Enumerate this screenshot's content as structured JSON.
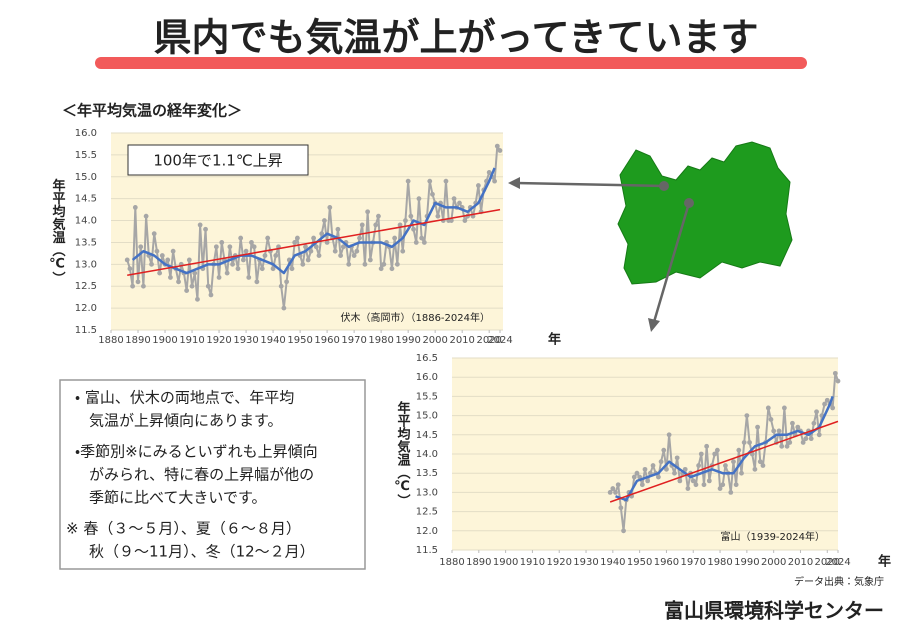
{
  "header": {
    "title": "県内でも気温が上がってきています",
    "subtitle": "＜年平均気温の経年変化＞"
  },
  "chart_data": [
    {
      "type": "line",
      "trend_note": "100年で1.1℃上昇",
      "station_label": "伏木（高岡市）（1886-2024年）",
      "ylabel": "年平均気温（℃）",
      "xlabel": "年",
      "xlim": [
        1880,
        2024
      ],
      "xticks": [
        1880,
        1890,
        1900,
        1910,
        1920,
        1930,
        1940,
        1950,
        1960,
        1970,
        1980,
        1990,
        2000,
        2010,
        2020,
        2024
      ],
      "ylim": [
        11.5,
        16.0
      ],
      "yticks": [
        11.5,
        {
          "value": 12,
          "label": "12.0"
        },
        12.5,
        {
          "value": 13,
          "label": "13.0"
        },
        13.5,
        {
          "value": 14,
          "label": "14.0"
        },
        14.5,
        {
          "value": 15,
          "label": "15.0"
        },
        15.5,
        {
          "value": 16,
          "label": "16.0"
        }
      ],
      "grid": true,
      "series": [
        {
          "color": "#a6a6a6",
          "markers": true,
          "x": [
            1886,
            1887,
            1888,
            1889,
            1890,
            1891,
            1892,
            1893,
            1894,
            1895,
            1896,
            1897,
            1898,
            1899,
            1900,
            1901,
            1902,
            1903,
            1904,
            1905,
            1906,
            1907,
            1908,
            1909,
            1910,
            1911,
            1912,
            1913,
            1914,
            1915,
            1916,
            1917,
            1918,
            1919,
            1920,
            1921,
            1922,
            1923,
            1924,
            1925,
            1926,
            1927,
            1928,
            1929,
            1930,
            1931,
            1932,
            1933,
            1934,
            1935,
            1936,
            1937,
            1938,
            1939,
            1940,
            1941,
            1942,
            1943,
            1944,
            1945,
            1946,
            1947,
            1948,
            1949,
            1950,
            1951,
            1952,
            1953,
            1954,
            1955,
            1956,
            1957,
            1958,
            1959,
            1960,
            1961,
            1962,
            1963,
            1964,
            1965,
            1966,
            1967,
            1968,
            1969,
            1970,
            1971,
            1972,
            1973,
            1974,
            1975,
            1976,
            1977,
            1978,
            1979,
            1980,
            1981,
            1982,
            1983,
            1984,
            1985,
            1986,
            1987,
            1988,
            1989,
            1990,
            1991,
            1992,
            1993,
            1994,
            1995,
            1996,
            1997,
            1998,
            1999,
            2000,
            2001,
            2002,
            2003,
            2004,
            2005,
            2006,
            2007,
            2008,
            2009,
            2010,
            2011,
            2012,
            2013,
            2014,
            2015,
            2016,
            2017,
            2018,
            2019,
            2020,
            2021,
            2022,
            2023,
            2024
          ],
          "values": [
            13.1,
            12.9,
            12.5,
            14.3,
            12.6,
            13.4,
            12.5,
            14.1,
            13.2,
            13.0,
            13.7,
            13.3,
            12.8,
            13.2,
            13.0,
            13.1,
            12.7,
            13.3,
            12.9,
            12.6,
            13.0,
            12.8,
            12.4,
            13.1,
            12.5,
            12.8,
            12.2,
            13.9,
            12.9,
            13.8,
            12.5,
            12.3,
            13.0,
            13.4,
            12.7,
            13.5,
            13.1,
            12.8,
            13.4,
            13.0,
            13.2,
            12.9,
            13.6,
            13.1,
            13.3,
            12.7,
            13.5,
            13.4,
            12.6,
            13.1,
            12.9,
            13.2,
            13.6,
            13.3,
            12.9,
            13.2,
            13.4,
            12.5,
            12.0,
            12.6,
            13.1,
            12.9,
            13.5,
            13.6,
            13.2,
            13.0,
            13.4,
            13.1,
            13.3,
            13.6,
            13.4,
            13.2,
            13.7,
            14.0,
            13.5,
            14.3,
            13.6,
            13.3,
            13.8,
            13.2,
            13.4,
            13.5,
            13.0,
            13.4,
            13.2,
            13.3,
            13.6,
            13.9,
            13.0,
            14.2,
            13.1,
            13.5,
            13.9,
            14.1,
            12.9,
            13.0,
            13.5,
            13.4,
            12.9,
            13.6,
            13.0,
            13.9,
            13.3,
            14.0,
            14.9,
            14.1,
            13.8,
            13.5,
            14.5,
            13.6,
            13.5,
            14.1,
            14.9,
            14.6,
            14.4,
            14.1,
            14.4,
            14.0,
            14.9,
            14.0,
            14.0,
            14.5,
            14.3,
            14.4,
            14.3,
            14.0,
            14.1,
            14.3,
            14.1,
            14.4,
            14.8,
            14.2,
            14.7,
            14.9,
            15.1,
            15.0,
            14.9,
            15.7,
            15.6
          ]
        },
        {
          "color": "#4472c4",
          "x": [
            1888,
            1892,
            1896,
            1900,
            1904,
            1908,
            1912,
            1916,
            1920,
            1924,
            1928,
            1932,
            1936,
            1940,
            1944,
            1948,
            1952,
            1956,
            1960,
            1964,
            1968,
            1972,
            1976,
            1980,
            1984,
            1988,
            1992,
            1996,
            2000,
            2004,
            2008,
            2012,
            2016,
            2020,
            2022
          ],
          "values": [
            13.1,
            13.3,
            13.2,
            13.0,
            12.9,
            12.8,
            12.9,
            13.0,
            13.0,
            13.1,
            13.2,
            13.2,
            13.1,
            13.0,
            12.8,
            13.2,
            13.3,
            13.5,
            13.7,
            13.6,
            13.4,
            13.5,
            13.5,
            13.5,
            13.4,
            13.6,
            14.0,
            13.9,
            14.4,
            14.3,
            14.3,
            14.2,
            14.4,
            14.9,
            15.2
          ]
        },
        {
          "color": "#e02020",
          "x": [
            1886,
            2024
          ],
          "values": [
            12.75,
            14.25
          ]
        }
      ]
    },
    {
      "type": "line",
      "station_label": "富山（1939-2024年）",
      "ylabel": "年平均気温（℃）",
      "xlabel": "年",
      "xlim": [
        1880,
        2024
      ],
      "xticks": [
        1880,
        1890,
        1900,
        1910,
        1920,
        1930,
        1940,
        1950,
        1960,
        1970,
        1980,
        1990,
        2000,
        2010,
        2020,
        2024
      ],
      "ylim": [
        11.5,
        16.5
      ],
      "yticks": [
        11.5,
        {
          "value": 12,
          "label": "12.0"
        },
        12.5,
        {
          "value": 13,
          "label": "13.0"
        },
        13.5,
        {
          "value": 14,
          "label": "14.0"
        },
        14.5,
        {
          "value": 15,
          "label": "15.0"
        },
        15.5,
        {
          "value": 16,
          "label": "16.0"
        },
        16.5
      ],
      "grid": true,
      "series": [
        {
          "color": "#a6a6a6",
          "markers": true,
          "x": [
            1939,
            1940,
            1941,
            1942,
            1943,
            1944,
            1945,
            1946,
            1947,
            1948,
            1949,
            1950,
            1951,
            1952,
            1953,
            1954,
            1955,
            1956,
            1957,
            1958,
            1959,
            1960,
            1961,
            1962,
            1963,
            1964,
            1965,
            1966,
            1967,
            1968,
            1969,
            1970,
            1971,
            1972,
            1973,
            1974,
            1975,
            1976,
            1977,
            1978,
            1979,
            1980,
            1981,
            1982,
            1983,
            1984,
            1985,
            1986,
            1987,
            1988,
            1989,
            1990,
            1991,
            1992,
            1993,
            1994,
            1995,
            1996,
            1997,
            1998,
            1999,
            2000,
            2001,
            2002,
            2003,
            2004,
            2005,
            2006,
            2007,
            2008,
            2009,
            2010,
            2011,
            2012,
            2013,
            2014,
            2015,
            2016,
            2017,
            2018,
            2019,
            2020,
            2021,
            2022,
            2023,
            2024
          ],
          "values": [
            13.0,
            13.1,
            13.0,
            13.2,
            12.6,
            12.0,
            12.8,
            13.0,
            12.9,
            13.4,
            13.5,
            13.4,
            13.2,
            13.6,
            13.3,
            13.5,
            13.7,
            13.5,
            13.4,
            13.8,
            14.1,
            13.6,
            14.5,
            13.7,
            13.5,
            13.9,
            13.3,
            13.5,
            13.6,
            13.1,
            13.5,
            13.3,
            13.2,
            13.7,
            14.0,
            13.2,
            14.2,
            13.3,
            13.7,
            14.0,
            14.1,
            13.1,
            13.2,
            13.7,
            13.5,
            13.0,
            13.8,
            13.2,
            14.1,
            13.5,
            14.3,
            15.0,
            14.3,
            14.0,
            13.6,
            14.7,
            13.8,
            13.7,
            14.3,
            15.2,
            14.9,
            14.6,
            14.3,
            14.6,
            14.2,
            15.2,
            14.2,
            14.3,
            14.8,
            14.5,
            14.7,
            14.6,
            14.3,
            14.4,
            14.6,
            14.4,
            14.8,
            15.1,
            14.5,
            15.0,
            15.3,
            15.4,
            15.3,
            15.2,
            16.1,
            15.9
          ]
        },
        {
          "color": "#4472c4",
          "x": [
            1941,
            1945,
            1949,
            1953,
            1957,
            1961,
            1965,
            1969,
            1973,
            1977,
            1981,
            1985,
            1989,
            1993,
            1997,
            2001,
            2005,
            2009,
            2013,
            2017,
            2021,
            2022
          ],
          "values": [
            12.9,
            12.8,
            13.3,
            13.4,
            13.5,
            13.8,
            13.6,
            13.4,
            13.5,
            13.6,
            13.5,
            13.5,
            13.9,
            14.2,
            14.3,
            14.5,
            14.5,
            14.6,
            14.5,
            14.7,
            15.3,
            15.5
          ]
        },
        {
          "color": "#e02020",
          "x": [
            1939,
            2024
          ],
          "values": [
            12.75,
            14.85
          ]
        }
      ]
    }
  ],
  "notes": {
    "lines": [
      "・ 富山、伏木の両地点で、年平均",
      "気温が上昇傾向にあります。",
      "・季節別※にみるといずれも上昇傾向",
      "がみられ、特に春の上昇幅が他の",
      "季節に比べて大きいです。",
      "※ 春（３～５月）、夏（６～８月）",
      "秋（９～11月）、冬（12～２月）"
    ]
  },
  "source": "データ出典：気象庁",
  "footer": "富山県環境科学センター"
}
